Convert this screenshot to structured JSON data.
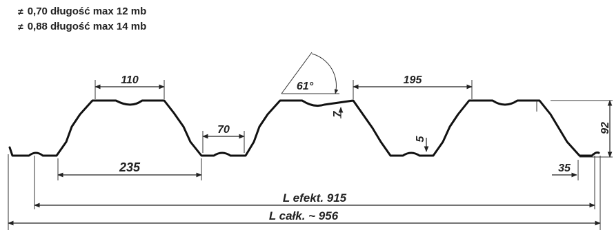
{
  "specs": [
    {
      "bullet": "≠",
      "text": "0,70 długość max 12 mb"
    },
    {
      "bullet": "≠",
      "text": "0,88 długość max 14 mb"
    }
  ],
  "dimensions": {
    "top_width": "110",
    "bottom_width": "70",
    "pitch": "235",
    "angle": "61°",
    "crest_spacing": "195",
    "rib_depth": "7",
    "valley_rib": "5",
    "height": "92",
    "edge": "35",
    "effective_length": "L efekt. 915",
    "total_length": "L całk. ~ 956"
  }
}
